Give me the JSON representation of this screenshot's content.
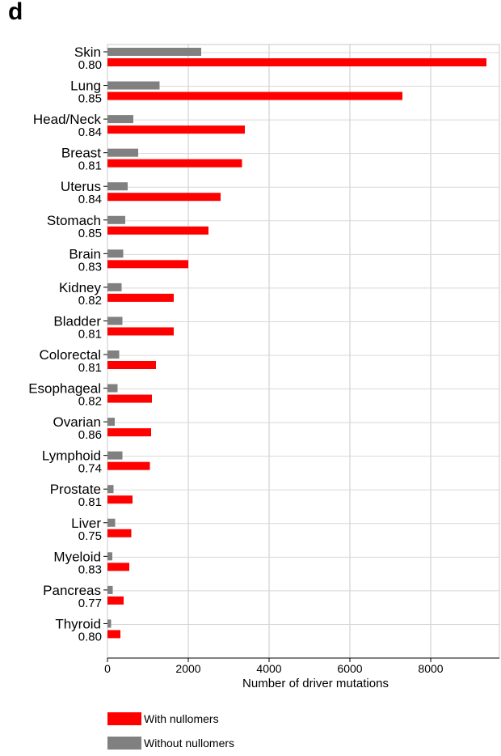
{
  "panel_label": "d",
  "chart_data": {
    "type": "bar",
    "orientation": "horizontal",
    "categories": [
      "Skin",
      "Lung",
      "Head/Neck",
      "Breast",
      "Uterus",
      "Stomach",
      "Brain",
      "Kidney",
      "Bladder",
      "Colorectal",
      "Esophageal",
      "Ovarian",
      "Lymphoid",
      "Prostate",
      "Liver",
      "Myeloid",
      "Pancreas",
      "Thyroid"
    ],
    "category_scores": [
      "0.80",
      "0.85",
      "0.84",
      "0.81",
      "0.84",
      "0.85",
      "0.83",
      "0.82",
      "0.81",
      "0.81",
      "0.82",
      "0.86",
      "0.74",
      "0.81",
      "0.75",
      "0.83",
      "0.77",
      "0.80"
    ],
    "series": [
      {
        "name": "Without nullomers",
        "color": "#808080",
        "values": [
          2320,
          1290,
          640,
          760,
          500,
          440,
          390,
          350,
          370,
          290,
          250,
          180,
          370,
          150,
          190,
          120,
          130,
          90
        ]
      },
      {
        "name": "With nullomers",
        "color": "#ff0000",
        "values": [
          9380,
          7300,
          3400,
          3330,
          2800,
          2500,
          2000,
          1640,
          1640,
          1200,
          1100,
          1080,
          1050,
          620,
          590,
          540,
          400,
          320
        ]
      }
    ],
    "xlabel": "Number of driver mutations",
    "ylabel": "",
    "title": "",
    "xlim": [
      0,
      9700
    ],
    "xticks": [
      0,
      2000,
      4000,
      6000,
      8000
    ],
    "grid": true,
    "legend_position": "bottom-left"
  },
  "legend": {
    "items": [
      {
        "label": "With nullomers",
        "color": "#ff0000"
      },
      {
        "label": "Without nullomers",
        "color": "#808080"
      }
    ]
  }
}
